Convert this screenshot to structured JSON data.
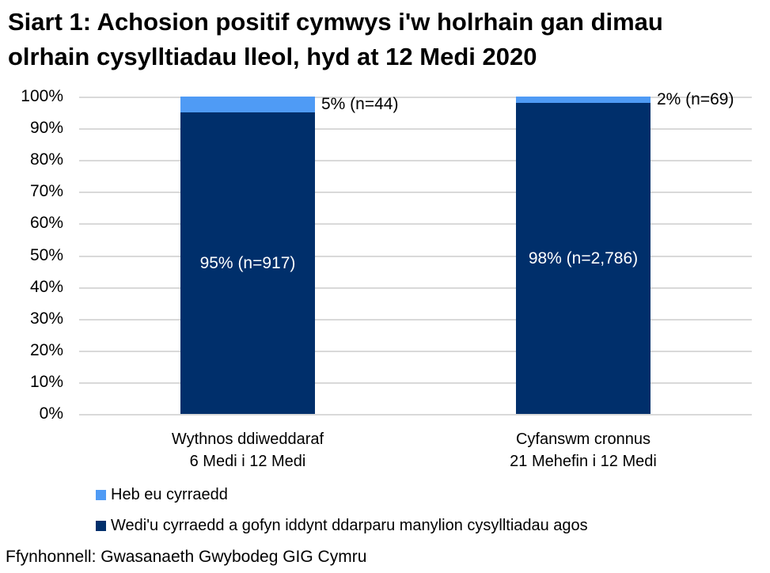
{
  "header": {
    "line1": "Siart 1: Achosion positif cymwys i'w holrhain gan dimau",
    "line2": "olrhain cysylltiadau lleol, hyd at 12 Medi 2020"
  },
  "source": "Ffynhonnell: Gwasanaeth Gwybodeg GIG Cymru",
  "colors": {
    "not_reached_blue": "#4F9BF5",
    "reached_navy": "#002F6B",
    "gridline": "#D9D9D9",
    "inbar_label_text": "#FFFFFF",
    "text": "#000000",
    "background": "#FFFFFF"
  },
  "chart_data": {
    "type": "bar",
    "stacked": true,
    "orientation": "vertical",
    "title": "Siart 1: Achosion positif cymwys i'w holrhain gan dimau olrhain cysylltiadau lleol, hyd at 12 Medi 2020",
    "xlabel": "",
    "ylabel": "",
    "ylim": [
      0,
      100
    ],
    "grid": true,
    "legend_position": "bottom-left",
    "ytick_labels": [
      "0%",
      "10%",
      "20%",
      "30%",
      "40%",
      "50%",
      "60%",
      "70%",
      "80%",
      "90%",
      "100%"
    ],
    "categories": [
      {
        "line1": "Wythnos ddiweddaraf",
        "line2": "6 Medi i 12 Medi"
      },
      {
        "line1": "Cyfanswm cronnus",
        "line2": "21 Mehefin i 12 Medi"
      }
    ],
    "series": [
      {
        "name": "Heb eu cyrraedd",
        "color": "#4F9BF5",
        "values": [
          5,
          2
        ],
        "counts": [
          44,
          69
        ],
        "labels": [
          "5% (n=44)",
          "2% (n=69)"
        ],
        "label_position": "outside-right"
      },
      {
        "name": "Wedi'u cyrraedd a gofyn iddynt ddarparu manylion cysylltiadau agos",
        "color": "#002F6B",
        "values": [
          95,
          98
        ],
        "counts": [
          917,
          2786
        ],
        "labels": [
          "95% (n=917)",
          "98% (n=2,786)"
        ],
        "label_position": "inside-center"
      }
    ]
  }
}
